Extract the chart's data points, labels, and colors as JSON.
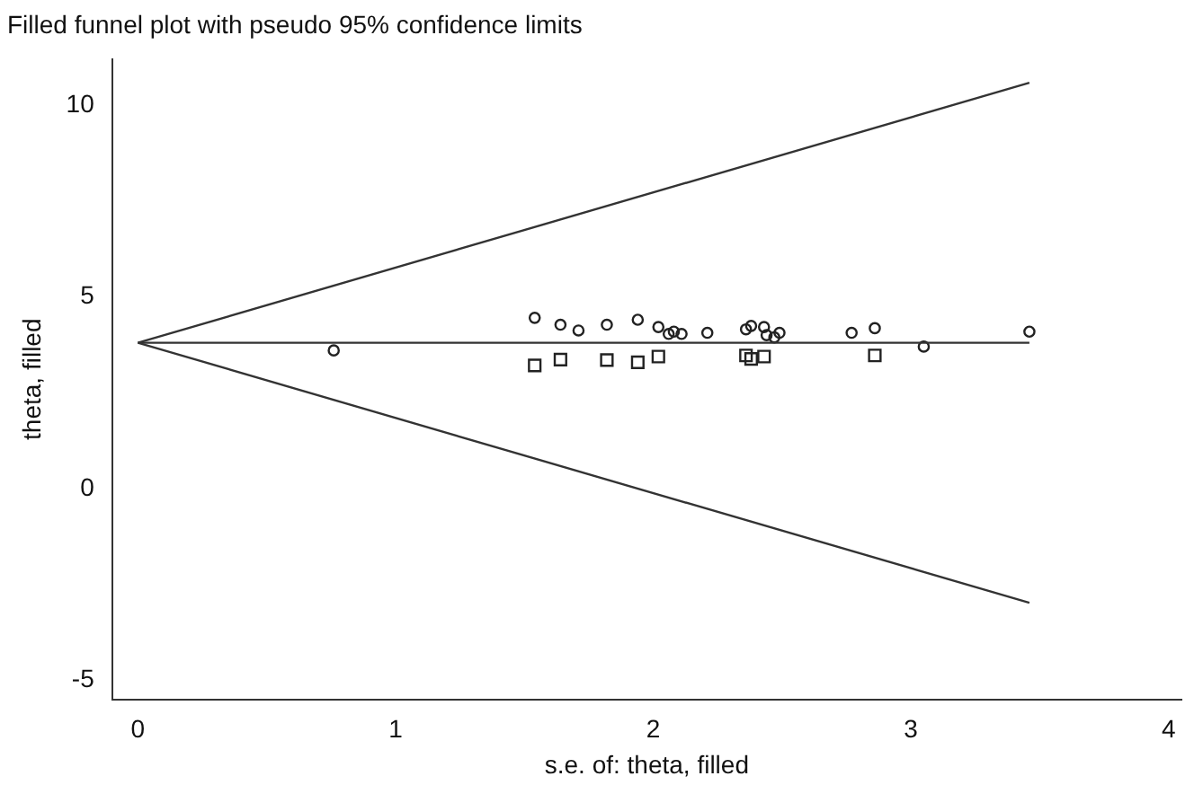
{
  "chart_data": {
    "type": "scatter",
    "title": "Filled funnel plot with pseudo 95% confidence limits",
    "xlabel": "s.e. of: theta, filled",
    "ylabel": "theta, filled",
    "xlim": [
      -0.1,
      4.05
    ],
    "ylim": [
      -5.5,
      11.2
    ],
    "xticks": [
      0,
      1,
      2,
      3,
      4
    ],
    "yticks": [
      -5,
      0,
      5,
      10
    ],
    "grid": false,
    "legend": false,
    "series": [
      {
        "type": "line",
        "color": "#333333",
        "marker": "none",
        "x": [
          0,
          3.46
        ],
        "values": [
          3.8,
          10.58
        ]
      },
      {
        "type": "line",
        "color": "#333333",
        "marker": "none",
        "x": [
          0,
          3.46
        ],
        "values": [
          3.8,
          -2.98
        ]
      },
      {
        "type": "line",
        "color": "#333333",
        "marker": "none",
        "x": [
          0,
          3.46
        ],
        "values": [
          3.8,
          3.8
        ]
      },
      {
        "color": "#222222",
        "marker": "circle",
        "x": [
          0.76,
          1.54,
          1.64,
          1.71,
          1.82,
          1.94,
          2.02,
          2.06,
          2.08,
          2.11,
          2.21,
          2.36,
          2.38,
          2.43,
          2.44,
          2.47,
          2.49,
          2.77,
          2.86,
          3.05,
          3.46
        ],
        "values": [
          3.6,
          4.45,
          4.27,
          4.12,
          4.27,
          4.4,
          4.21,
          4.03,
          4.09,
          4.03,
          4.06,
          4.15,
          4.24,
          4.21,
          4.0,
          3.94,
          4.06,
          4.06,
          4.18,
          3.7,
          4.09
        ]
      },
      {
        "color": "#222222",
        "marker": "square",
        "x": [
          1.54,
          1.64,
          1.82,
          1.94,
          2.02,
          2.36,
          2.38,
          2.43,
          2.86
        ],
        "values": [
          3.21,
          3.36,
          3.35,
          3.29,
          3.44,
          3.47,
          3.38,
          3.44,
          3.47
        ]
      }
    ]
  }
}
